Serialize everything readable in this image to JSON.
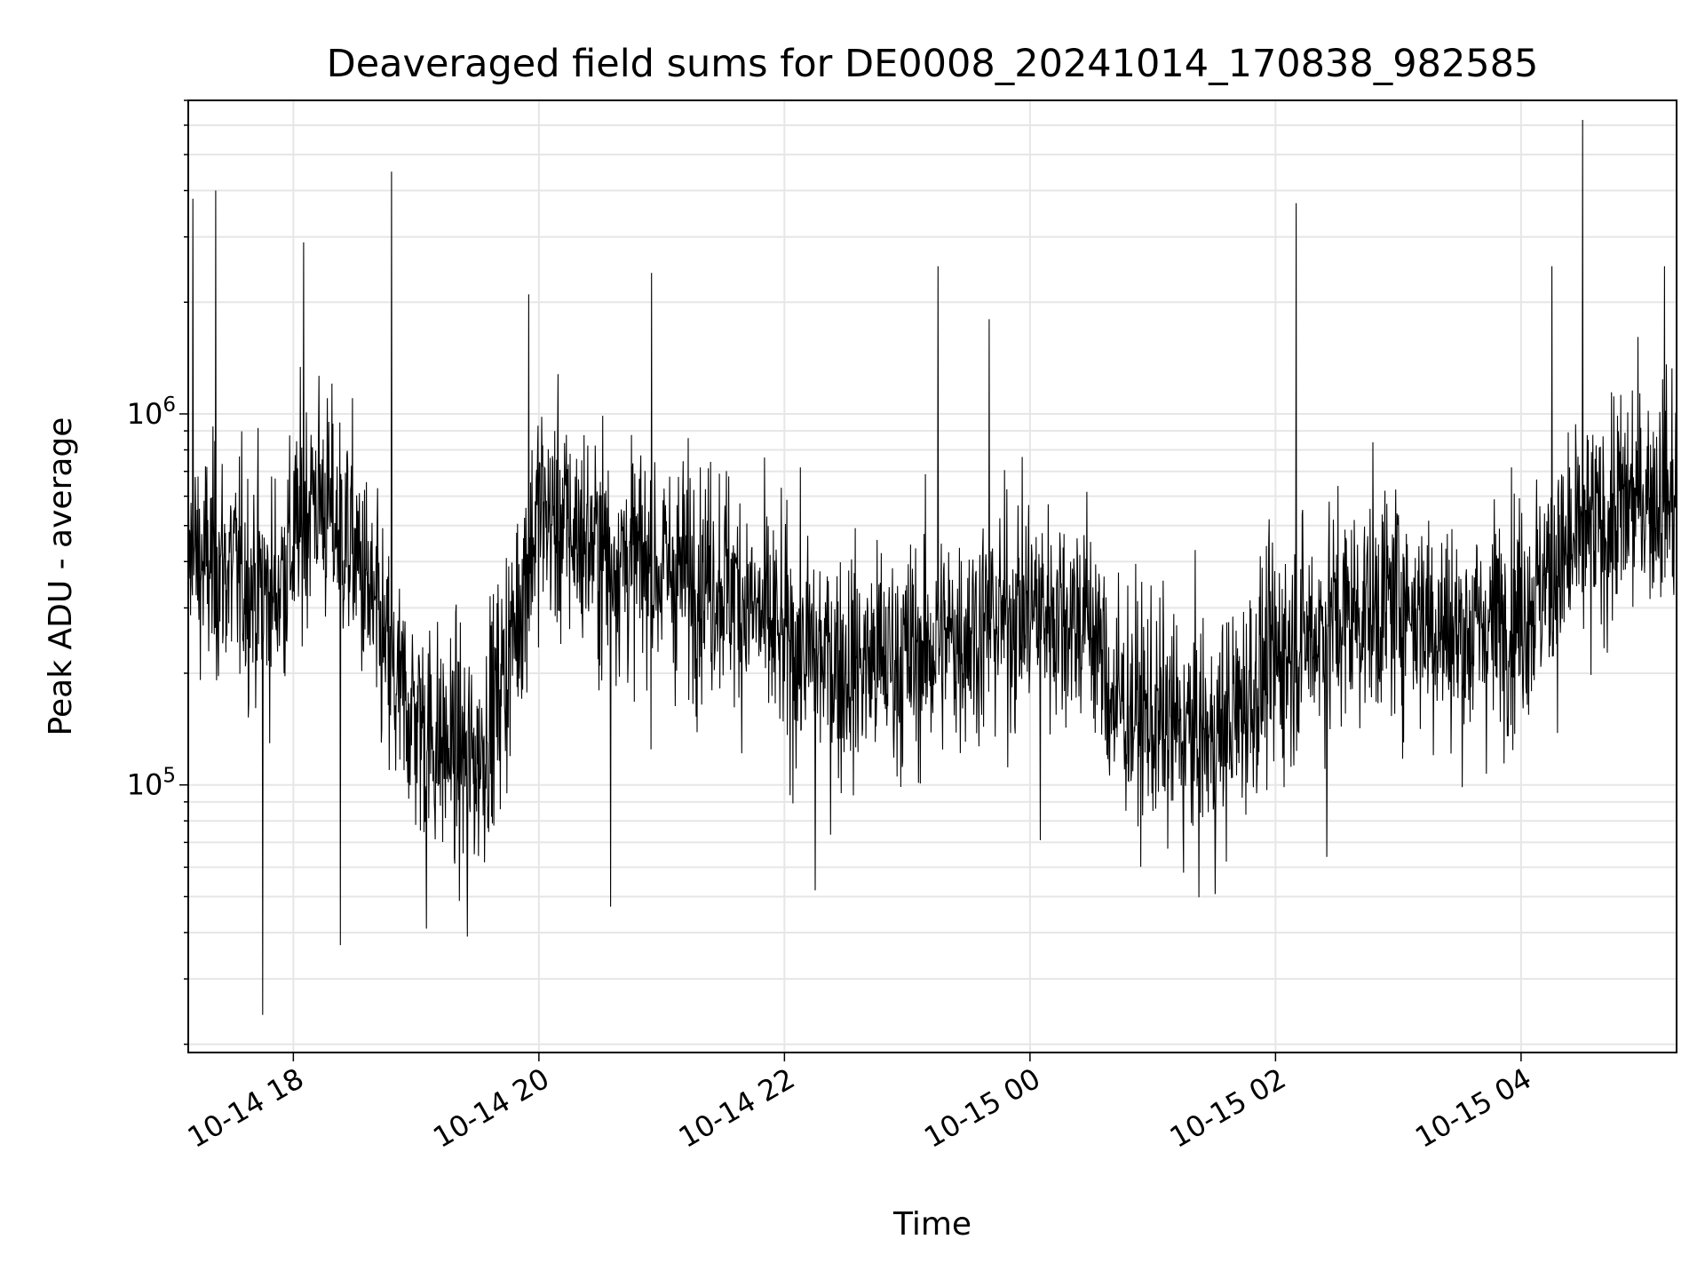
{
  "chart_data": {
    "type": "line",
    "title": "Deaveraged field sums for DE0008_20241014_170838_982585",
    "xlabel": "Time",
    "ylabel": "Peak ADU - average",
    "yscale": "log",
    "grid": true,
    "line_color": "#000000",
    "grid_color": "#e6e6e6",
    "x_range": [
      "2024-10-14 17:08:38",
      "2024-10-15 05:16:00"
    ],
    "ylim": [
      19000,
      7000000
    ],
    "x_ticks": [
      {
        "time": "2024-10-14 18:00",
        "label": "10-14 18"
      },
      {
        "time": "2024-10-14 20:00",
        "label": "10-14 20"
      },
      {
        "time": "2024-10-14 22:00",
        "label": "10-14 22"
      },
      {
        "time": "2024-10-15 00:00",
        "label": "10-15 00"
      },
      {
        "time": "2024-10-15 02:00",
        "label": "10-15 02"
      },
      {
        "time": "2024-10-15 04:00",
        "label": "10-15 04"
      }
    ],
    "y_major_ticks": [
      {
        "value": 100000,
        "base": "10",
        "exp": "5"
      },
      {
        "value": 1000000,
        "base": "10",
        "exp": "6"
      }
    ],
    "trend": [
      {
        "t": "2024-10-14 17:08",
        "y": 400000
      },
      {
        "t": "2024-10-14 17:30",
        "y": 380000
      },
      {
        "t": "2024-10-14 17:50",
        "y": 320000
      },
      {
        "t": "2024-10-14 18:10",
        "y": 620000
      },
      {
        "t": "2024-10-14 18:30",
        "y": 430000
      },
      {
        "t": "2024-10-14 18:50",
        "y": 180000
      },
      {
        "t": "2024-10-14 19:10",
        "y": 130000
      },
      {
        "t": "2024-10-14 19:30",
        "y": 115000
      },
      {
        "t": "2024-10-14 19:45",
        "y": 220000
      },
      {
        "t": "2024-10-14 20:00",
        "y": 550000
      },
      {
        "t": "2024-10-14 20:30",
        "y": 430000
      },
      {
        "t": "2024-10-14 21:00",
        "y": 380000
      },
      {
        "t": "2024-10-14 21:30",
        "y": 360000
      },
      {
        "t": "2024-10-14 22:00",
        "y": 240000
      },
      {
        "t": "2024-10-14 22:30",
        "y": 210000
      },
      {
        "t": "2024-10-14 23:00",
        "y": 220000
      },
      {
        "t": "2024-10-14 23:30",
        "y": 260000
      },
      {
        "t": "2024-10-15 00:00",
        "y": 300000
      },
      {
        "t": "2024-10-15 00:30",
        "y": 280000
      },
      {
        "t": "2024-10-15 00:40",
        "y": 170000
      },
      {
        "t": "2024-10-15 01:00",
        "y": 150000
      },
      {
        "t": "2024-10-15 01:30",
        "y": 130000
      },
      {
        "t": "2024-10-15 02:00",
        "y": 220000
      },
      {
        "t": "2024-10-15 02:30",
        "y": 280000
      },
      {
        "t": "2024-10-15 03:00",
        "y": 320000
      },
      {
        "t": "2024-10-15 03:30",
        "y": 250000
      },
      {
        "t": "2024-10-15 04:00",
        "y": 300000
      },
      {
        "t": "2024-10-15 04:30",
        "y": 450000
      },
      {
        "t": "2024-10-15 05:00",
        "y": 620000
      },
      {
        "t": "2024-10-15 05:16",
        "y": 600000
      }
    ],
    "spikes": [
      {
        "t": "2024-10-14 17:11",
        "y": 3800000
      },
      {
        "t": "2024-10-14 17:22",
        "y": 4000000
      },
      {
        "t": "2024-10-14 17:45",
        "y": 24000
      },
      {
        "t": "2024-10-14 18:05",
        "y": 2900000
      },
      {
        "t": "2024-10-14 18:23",
        "y": 37000
      },
      {
        "t": "2024-10-14 18:48",
        "y": 4500000
      },
      {
        "t": "2024-10-14 19:05",
        "y": 41000
      },
      {
        "t": "2024-10-14 19:25",
        "y": 39000
      },
      {
        "t": "2024-10-14 19:55",
        "y": 2100000
      },
      {
        "t": "2024-10-14 20:35",
        "y": 47000
      },
      {
        "t": "2024-10-14 20:55",
        "y": 2400000
      },
      {
        "t": "2024-10-14 22:15",
        "y": 52000
      },
      {
        "t": "2024-10-14 23:15",
        "y": 2500000
      },
      {
        "t": "2024-10-14 23:40",
        "y": 1800000
      },
      {
        "t": "2024-10-15 00:05",
        "y": 71000
      },
      {
        "t": "2024-10-15 01:15",
        "y": 58000
      },
      {
        "t": "2024-10-15 02:10",
        "y": 3700000
      },
      {
        "t": "2024-10-15 02:25",
        "y": 64000
      },
      {
        "t": "2024-10-15 04:15",
        "y": 2500000
      },
      {
        "t": "2024-10-15 04:30",
        "y": 6200000
      },
      {
        "t": "2024-10-15 05:10",
        "y": 2500000
      }
    ]
  }
}
